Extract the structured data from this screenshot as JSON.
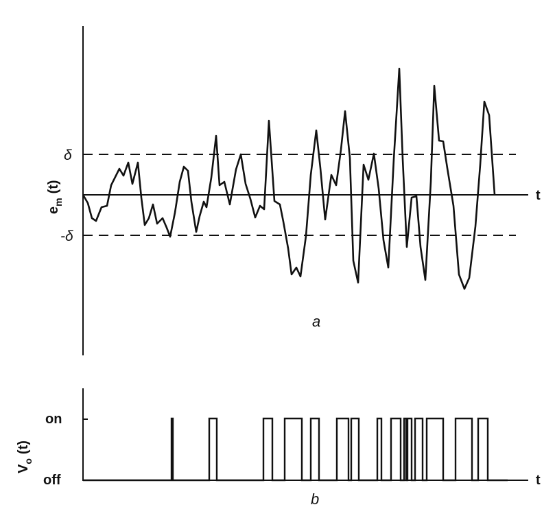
{
  "panel_a": {
    "ylabel_main": "e",
    "ylabel_sub": "m",
    "ylabel_tail": "(t)",
    "xlabel": "t",
    "upper_threshold": "δ",
    "lower_threshold": "-δ",
    "caption": "a"
  },
  "panel_b": {
    "ylabel_main": "V",
    "ylabel_sub": "o",
    "ylabel_tail": "(t)",
    "xlabel": "t",
    "on_label": "on",
    "off_label": "off",
    "caption": "b"
  },
  "colors": {
    "ink": "#111111",
    "background": "#ffffff"
  }
}
